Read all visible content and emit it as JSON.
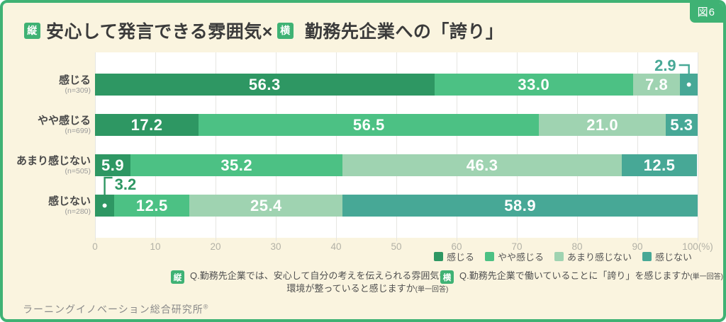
{
  "figure_label": "図6",
  "title": {
    "tag1": "縦",
    "part1": "安心して発言できる雰囲気×",
    "tag2": "横",
    "part2": "勤務先企業への「誇り」"
  },
  "chart_data": {
    "type": "bar",
    "orientation": "horizontal-stacked",
    "title": "安心して発言できる雰囲気×勤務先企業への「誇り」",
    "categories": [
      "感じる",
      "やや感じる",
      "あまり感じない",
      "感じない"
    ],
    "category_n": [
      "(n=309)",
      "(n=699)",
      "(n=505)",
      "(n=280)"
    ],
    "series": [
      {
        "name": "感じる",
        "color": "#2e9763",
        "values": [
          56.3,
          17.2,
          5.9,
          3.2
        ]
      },
      {
        "name": "やや感じる",
        "color": "#4cc184",
        "values": [
          33.0,
          56.5,
          35.2,
          12.5
        ]
      },
      {
        "name": "あまり感じない",
        "color": "#9fd3b1",
        "values": [
          7.8,
          21.0,
          46.3,
          25.4
        ]
      },
      {
        "name": "感じない",
        "color": "#47a896",
        "values": [
          2.9,
          5.3,
          12.5,
          58.9
        ]
      }
    ],
    "xlim": [
      0,
      100
    ],
    "x_ticks": [
      0,
      10,
      20,
      30,
      40,
      50,
      60,
      70,
      80,
      90,
      100
    ],
    "x_tick_labels": [
      "0",
      "10",
      "20",
      "30",
      "40",
      "50",
      "60",
      "70",
      "80",
      "90",
      "100(%)"
    ],
    "grid": true,
    "legend_position": "bottom-right",
    "annotations": [
      {
        "row": 0,
        "series": 3,
        "label": "2.9",
        "side": "left"
      },
      {
        "row": 3,
        "series": 0,
        "label": "3.2",
        "side": "right"
      }
    ]
  },
  "notes": [
    {
      "tag": "縦",
      "line1": "Q.勤務先企業では、安心して自分の考えを伝えられる雰囲気や",
      "line2": "環境が整っていると感じますか",
      "suffix": "(単一回答)"
    },
    {
      "tag": "横",
      "line1": "Q.勤務先企業で働いていることに「誇り」を感じますか",
      "suffix": "(単一回答)"
    }
  ],
  "footer": {
    "source": "ラーニングイノベーション総合研究所",
    "mark": "®"
  },
  "colors": {
    "frame": "#3fb274",
    "background": "#faf4df",
    "plot_bg": "#ffffff",
    "grid": "#e6e6e2",
    "title_text": "#3b3b3b",
    "tick_text": "#b2b1a6"
  }
}
